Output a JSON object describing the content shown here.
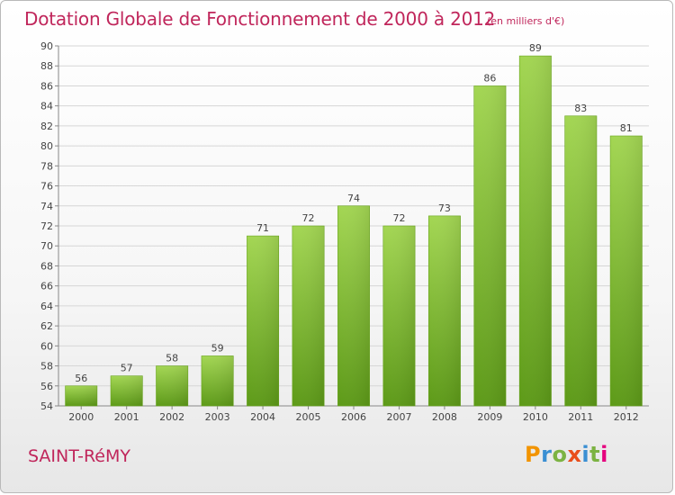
{
  "header": {
    "title": "Dotation Globale de Fonctionnement de 2000 à 2012",
    "unit": "(en milliers d'€)"
  },
  "footer": {
    "commune": "SAINT-RéMY",
    "logo_text": "Proxiti",
    "logo_colors": [
      "#f29400",
      "#3a8fd3",
      "#7cb342",
      "#e94e1b",
      "#3a8fd3",
      "#7cb342",
      "#e5007e"
    ]
  },
  "colors": {
    "title": "#c0265b",
    "bar": "#7cbf2e",
    "bar_light": "#9ed14f",
    "bar_dark": "#5d9a18"
  },
  "chart_data": {
    "type": "bar",
    "categories": [
      "2000",
      "2001",
      "2002",
      "2003",
      "2004",
      "2005",
      "2006",
      "2007",
      "2008",
      "2009",
      "2010",
      "2011",
      "2012"
    ],
    "values": [
      56,
      57,
      58,
      59,
      71,
      72,
      74,
      72,
      73,
      86,
      89,
      83,
      81
    ],
    "ylim": [
      54,
      90
    ],
    "yticks": [
      54,
      56,
      58,
      60,
      62,
      64,
      66,
      68,
      70,
      72,
      74,
      76,
      78,
      80,
      82,
      84,
      86,
      88,
      90
    ],
    "grid": true,
    "data_labels": true
  }
}
